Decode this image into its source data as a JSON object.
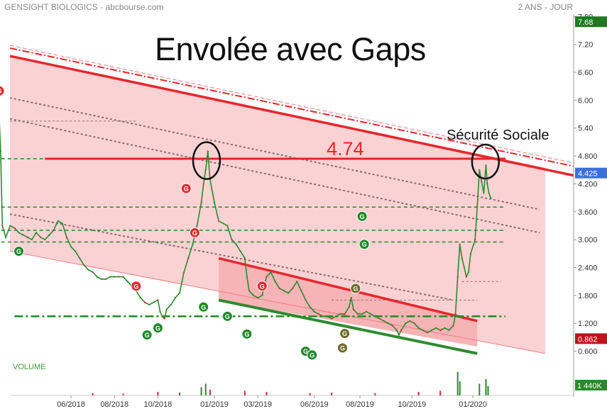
{
  "header": {
    "left": "GENSIGHT BIOLOGICS - abcbourse.com",
    "right": "2 ANS - JOUR"
  },
  "chart_data": {
    "type": "line",
    "title": "Envolée avec Gaps",
    "ylim": [
      0.35,
      7.85
    ],
    "y_ticks": [
      "7.80",
      "7.20",
      "6.60",
      "6.00",
      "5.40",
      "4.800",
      "4.200",
      "3.600",
      "3.000",
      "2.400",
      "1.800",
      "1.200",
      "0.600"
    ],
    "y_tick_values": [
      7.8,
      7.2,
      6.6,
      6.0,
      5.4,
      4.8,
      4.2,
      3.6,
      3.0,
      2.4,
      1.8,
      1.2,
      0.6
    ],
    "x_ticks": [
      "06/2018",
      "08/2018",
      "10/2018",
      "01/2019",
      "03/2019",
      "06/2019",
      "08/2019",
      "10/2019",
      "01/2020"
    ],
    "x_tick_positions": [
      0.0,
      0.1,
      0.2,
      0.33,
      0.43,
      0.56,
      0.665,
      0.785,
      0.925
    ],
    "price_labels": [
      {
        "text": "7.68",
        "value": 7.68,
        "color": "#1f7a1f"
      },
      {
        "text": "4.425",
        "value": 4.425,
        "color": "#3b6fe0"
      },
      {
        "text": "0.862",
        "value": 0.862,
        "color": "#c0141c"
      }
    ],
    "volume_label": "VOLUME",
    "volume_value": "1 440K",
    "annotations": {
      "level_label": "4.74",
      "level_value": 4.74,
      "event_label": "Sécurité Sociale"
    },
    "close_points": [
      [
        -0.17,
        6.0
      ],
      [
        -0.165,
        5.6
      ],
      [
        -0.162,
        4.9
      ],
      [
        -0.158,
        3.3
      ],
      [
        -0.15,
        3.05
      ],
      [
        -0.14,
        3.3
      ],
      [
        -0.13,
        3.25
      ],
      [
        -0.12,
        3.15
      ],
      [
        -0.11,
        3.1
      ],
      [
        -0.1,
        3.05
      ],
      [
        -0.09,
        3.0
      ],
      [
        -0.08,
        3.15
      ],
      [
        -0.07,
        3.05
      ],
      [
        -0.06,
        3.0
      ],
      [
        -0.05,
        3.1
      ],
      [
        -0.04,
        3.2
      ],
      [
        -0.03,
        3.4
      ],
      [
        -0.02,
        3.35
      ],
      [
        -0.01,
        3.05
      ],
      [
        0.0,
        2.85
      ],
      [
        0.01,
        2.75
      ],
      [
        0.02,
        2.6
      ],
      [
        0.03,
        2.45
      ],
      [
        0.04,
        2.35
      ],
      [
        0.05,
        2.3
      ],
      [
        0.06,
        2.2
      ],
      [
        0.07,
        2.15
      ],
      [
        0.08,
        2.15
      ],
      [
        0.09,
        2.2
      ],
      [
        0.1,
        2.2
      ],
      [
        0.11,
        2.2
      ],
      [
        0.12,
        2.2
      ],
      [
        0.13,
        2.1
      ],
      [
        0.14,
        2.0
      ],
      [
        0.15,
        1.9
      ],
      [
        0.16,
        1.75
      ],
      [
        0.17,
        1.65
      ],
      [
        0.18,
        1.6
      ],
      [
        0.19,
        1.65
      ],
      [
        0.2,
        1.7
      ],
      [
        0.205,
        1.45
      ],
      [
        0.21,
        1.35
      ],
      [
        0.215,
        1.3
      ],
      [
        0.22,
        1.5
      ],
      [
        0.23,
        1.6
      ],
      [
        0.24,
        1.75
      ],
      [
        0.25,
        1.85
      ],
      [
        0.26,
        2.3
      ],
      [
        0.27,
        2.6
      ],
      [
        0.28,
        2.9
      ],
      [
        0.29,
        3.3
      ],
      [
        0.3,
        3.8
      ],
      [
        0.305,
        4.2
      ],
      [
        0.31,
        4.5
      ],
      [
        0.315,
        4.9
      ],
      [
        0.32,
        4.3
      ],
      [
        0.33,
        3.8
      ],
      [
        0.34,
        3.4
      ],
      [
        0.35,
        3.35
      ],
      [
        0.36,
        3.3
      ],
      [
        0.37,
        3.0
      ],
      [
        0.38,
        2.9
      ],
      [
        0.39,
        2.75
      ],
      [
        0.4,
        2.6
      ],
      [
        0.405,
        2.2
      ],
      [
        0.41,
        1.9
      ],
      [
        0.42,
        1.8
      ],
      [
        0.43,
        1.75
      ],
      [
        0.44,
        1.8
      ],
      [
        0.45,
        2.2
      ],
      [
        0.46,
        2.3
      ],
      [
        0.47,
        2.1
      ],
      [
        0.48,
        1.95
      ],
      [
        0.49,
        1.9
      ],
      [
        0.5,
        1.85
      ],
      [
        0.51,
        1.95
      ],
      [
        0.52,
        2.1
      ],
      [
        0.53,
        1.9
      ],
      [
        0.54,
        1.7
      ],
      [
        0.55,
        1.55
      ],
      [
        0.56,
        1.45
      ],
      [
        0.57,
        1.4
      ],
      [
        0.58,
        1.35
      ],
      [
        0.59,
        1.35
      ],
      [
        0.6,
        1.3
      ],
      [
        0.61,
        1.35
      ],
      [
        0.62,
        1.4
      ],
      [
        0.63,
        1.4
      ],
      [
        0.64,
        1.55
      ],
      [
        0.645,
        1.75
      ],
      [
        0.65,
        1.5
      ],
      [
        0.66,
        1.4
      ],
      [
        0.67,
        1.4
      ],
      [
        0.68,
        1.45
      ],
      [
        0.69,
        1.4
      ],
      [
        0.7,
        1.35
      ],
      [
        0.71,
        1.3
      ],
      [
        0.72,
        1.25
      ],
      [
        0.73,
        1.2
      ],
      [
        0.74,
        1.15
      ],
      [
        0.75,
        1.05
      ],
      [
        0.755,
        0.95
      ],
      [
        0.76,
        1.05
      ],
      [
        0.77,
        1.2
      ],
      [
        0.78,
        1.25
      ],
      [
        0.79,
        1.2
      ],
      [
        0.8,
        1.1
      ],
      [
        0.81,
        1.05
      ],
      [
        0.82,
        1.0
      ],
      [
        0.83,
        1.05
      ],
      [
        0.84,
        1.1
      ],
      [
        0.85,
        1.05
      ],
      [
        0.86,
        1.1
      ],
      [
        0.87,
        1.05
      ],
      [
        0.88,
        1.15
      ],
      [
        0.885,
        1.4
      ],
      [
        0.89,
        2.2
      ],
      [
        0.895,
        2.9
      ],
      [
        0.9,
        2.6
      ],
      [
        0.905,
        2.4
      ],
      [
        0.91,
        2.2
      ],
      [
        0.915,
        2.3
      ],
      [
        0.92,
        2.7
      ],
      [
        0.93,
        3.0
      ],
      [
        0.935,
        3.7
      ],
      [
        0.94,
        4.5
      ],
      [
        0.945,
        4.25
      ],
      [
        0.95,
        4.0
      ],
      [
        0.955,
        4.6
      ],
      [
        0.958,
        4.2
      ],
      [
        0.962,
        4.0
      ],
      [
        0.966,
        3.9
      ]
    ],
    "gap_markers": [
      {
        "x": -0.165,
        "y": 6.2,
        "color": "red"
      },
      {
        "x": -0.12,
        "y": 2.75,
        "color": "green"
      },
      {
        "x": 0.15,
        "y": 2.0,
        "color": "red"
      },
      {
        "x": 0.175,
        "y": 0.95,
        "color": "green"
      },
      {
        "x": 0.2,
        "y": 1.1,
        "color": "green"
      },
      {
        "x": 0.265,
        "y": 4.1,
        "color": "red"
      },
      {
        "x": 0.285,
        "y": 3.15,
        "color": "red"
      },
      {
        "x": 0.305,
        "y": 1.55,
        "color": "green"
      },
      {
        "x": 0.36,
        "y": 1.35,
        "color": "green"
      },
      {
        "x": 0.44,
        "y": 2.0,
        "color": "red"
      },
      {
        "x": 0.405,
        "y": 0.97,
        "color": "green"
      },
      {
        "x": 0.54,
        "y": 0.6,
        "color": "green"
      },
      {
        "x": 0.555,
        "y": 0.52,
        "color": "green"
      },
      {
        "x": 0.625,
        "y": 0.67,
        "color": "olive"
      },
      {
        "x": 0.63,
        "y": 0.98,
        "color": "olive"
      },
      {
        "x": 0.655,
        "y": 1.95,
        "color": "olive"
      },
      {
        "x": 0.67,
        "y": 3.5,
        "color": "green"
      },
      {
        "x": 0.675,
        "y": 2.9,
        "color": "green"
      }
    ],
    "horizontal_levels": [
      {
        "value": 4.74,
        "style": "solid",
        "color": "#e8262b",
        "from": -0.06,
        "to": 1.0
      },
      {
        "value": 4.74,
        "style": "dashed",
        "color": "#1f8a1f",
        "from": -0.19,
        "to": -0.06
      },
      {
        "value": 3.7,
        "style": "dashed",
        "color": "#1f8a1f",
        "from": -0.19,
        "to": 1.0
      },
      {
        "value": 3.2,
        "style": "dashed",
        "color": "#1f8a1f",
        "from": -0.19,
        "to": 1.0
      },
      {
        "value": 2.95,
        "style": "dashed",
        "color": "#1f8a1f",
        "from": -0.19,
        "to": 1.0
      },
      {
        "value": 1.35,
        "style": "dashdot",
        "color": "#1f8a1f",
        "from": -0.13,
        "to": 1.0
      }
    ],
    "volume_bars": [
      [
        0.05,
        0.1
      ],
      [
        0.12,
        0.08
      ],
      [
        0.2,
        0.15
      ],
      [
        0.25,
        0.12
      ],
      [
        0.3,
        0.35
      ],
      [
        0.31,
        0.5
      ],
      [
        0.32,
        0.25
      ],
      [
        0.4,
        0.2
      ],
      [
        0.45,
        0.15
      ],
      [
        0.55,
        0.1
      ],
      [
        0.6,
        0.12
      ],
      [
        0.7,
        0.1
      ],
      [
        0.8,
        0.15
      ],
      [
        0.85,
        0.2
      ],
      [
        0.89,
        1.0
      ],
      [
        0.895,
        0.6
      ],
      [
        0.94,
        0.5
      ],
      [
        0.955,
        0.7
      ],
      [
        0.96,
        0.4
      ]
    ]
  }
}
